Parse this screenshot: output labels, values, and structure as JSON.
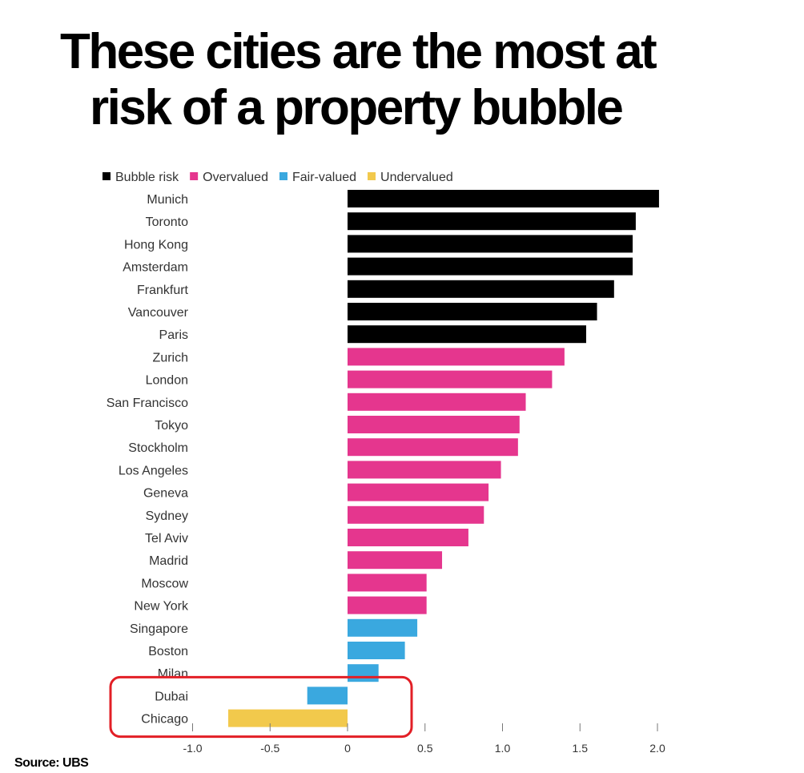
{
  "title": {
    "line1": "These cities are the most at",
    "line2": "risk of a property bubble"
  },
  "source": "Source: UBS",
  "colors": {
    "Bubble risk": "#000000",
    "Overvalued": "#e5368e",
    "Fair-valued": "#3aa8df",
    "Undervalued": "#f2c94c",
    "highlight": "#e21f26"
  },
  "chart_data": {
    "type": "bar",
    "orientation": "horizontal",
    "legend": [
      "Bubble risk",
      "Overvalued",
      "Fair-valued",
      "Undervalued"
    ],
    "legend_position": "top",
    "categories": [
      "Munich",
      "Toronto",
      "Hong Kong",
      "Amsterdam",
      "Frankfurt",
      "Vancouver",
      "Paris",
      "Zurich",
      "London",
      "San Francisco",
      "Tokyo",
      "Stockholm",
      "Los Angeles",
      "Geneva",
      "Sydney",
      "Tel Aviv",
      "Madrid",
      "Moscow",
      "New York",
      "Singapore",
      "Boston",
      "Milan",
      "Dubai",
      "Chicago"
    ],
    "values": [
      2.01,
      1.86,
      1.84,
      1.84,
      1.72,
      1.61,
      1.54,
      1.4,
      1.32,
      1.15,
      1.11,
      1.1,
      0.99,
      0.91,
      0.88,
      0.78,
      0.61,
      0.51,
      0.51,
      0.45,
      0.37,
      0.2,
      -0.26,
      -0.77
    ],
    "groups": [
      "Bubble risk",
      "Bubble risk",
      "Bubble risk",
      "Bubble risk",
      "Bubble risk",
      "Bubble risk",
      "Bubble risk",
      "Overvalued",
      "Overvalued",
      "Overvalued",
      "Overvalued",
      "Overvalued",
      "Overvalued",
      "Overvalued",
      "Overvalued",
      "Overvalued",
      "Overvalued",
      "Overvalued",
      "Overvalued",
      "Fair-valued",
      "Fair-valued",
      "Fair-valued",
      "Fair-valued",
      "Undervalued"
    ],
    "xticks": [
      -1.0,
      -0.5,
      0,
      0.5,
      1.0,
      1.5,
      2.0
    ],
    "xtick_labels": [
      "-1.0",
      "-0.5",
      "0",
      "0.5",
      "1.0",
      "1.5",
      "2.0"
    ],
    "xlim": [
      -1.0,
      2.0
    ],
    "grid": false,
    "highlight": [
      "Dubai",
      "Chicago"
    ]
  }
}
